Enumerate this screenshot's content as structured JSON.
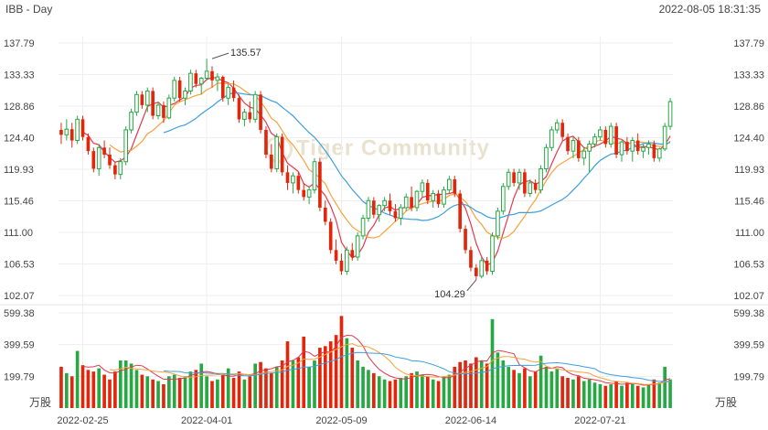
{
  "header": {
    "title": "IBB - Day",
    "timestamp": "2022-08-05 18:31:35"
  },
  "watermark": {
    "text": "Tiger Community"
  },
  "colors": {
    "up": "#27a844",
    "down": "#e2260c",
    "ma_short": "#e2394f",
    "ma_mid": "#f7a33c",
    "ma_long": "#3e9edc"
  },
  "chart_data": {
    "type": "candlestick",
    "price_axis": {
      "ticks": [
        "137.79",
        "133.33",
        "128.86",
        "124.40",
        "119.93",
        "115.46",
        "111.00",
        "106.53",
        "102.07"
      ],
      "min": 102.07,
      "max": 137.79
    },
    "volume_axis": {
      "ticks": [
        "599.38",
        "399.59",
        "199.79"
      ],
      "unit": "万股",
      "max": 599.38
    },
    "date_ticks": [
      "2022-02-25",
      "2022-04-01",
      "2022-05-09",
      "2022-06-14",
      "2022-07-21"
    ],
    "date_tick_index": [
      4,
      27,
      52,
      76,
      100
    ],
    "annotations": [
      {
        "text": "135.57",
        "index": 28,
        "value": 135.57,
        "kind": "high"
      },
      {
        "text": "104.29",
        "index": 77,
        "value": 104.29,
        "kind": "low"
      }
    ],
    "candles": [
      [
        125.5,
        126.5,
        123.5,
        124.8,
        260
      ],
      [
        124.8,
        127.0,
        124.0,
        125.6,
        220
      ],
      [
        125.6,
        126.5,
        123.0,
        124.0,
        200
      ],
      [
        124.0,
        127.5,
        123.5,
        127.0,
        360
      ],
      [
        127.0,
        127.5,
        124.0,
        124.5,
        270
      ],
      [
        124.5,
        125.0,
        122.0,
        122.5,
        240
      ],
      [
        122.5,
        123.0,
        119.5,
        120.0,
        230
      ],
      [
        120.0,
        123.5,
        119.0,
        123.0,
        250
      ],
      [
        123.0,
        124.0,
        121.5,
        122.0,
        210
      ],
      [
        122.0,
        123.0,
        120.0,
        120.5,
        180
      ],
      [
        120.5,
        121.0,
        118.5,
        119.2,
        230
      ],
      [
        119.2,
        121.5,
        118.5,
        121.0,
        300
      ],
      [
        121.0,
        126.0,
        120.5,
        125.5,
        300
      ],
      [
        125.5,
        128.5,
        125.0,
        128.0,
        280
      ],
      [
        128.0,
        131.0,
        127.5,
        130.5,
        240
      ],
      [
        130.5,
        131.0,
        128.5,
        129.0,
        210
      ],
      [
        129.0,
        131.5,
        128.0,
        131.0,
        200
      ],
      [
        131.0,
        131.5,
        127.0,
        127.5,
        180
      ],
      [
        127.5,
        129.5,
        127.0,
        129.0,
        170
      ],
      [
        129.0,
        129.5,
        126.5,
        127.2,
        150
      ],
      [
        127.2,
        130.5,
        127.0,
        130.0,
        200
      ],
      [
        130.0,
        133.0,
        129.5,
        132.5,
        210
      ],
      [
        132.5,
        133.0,
        129.5,
        130.0,
        190
      ],
      [
        130.0,
        131.5,
        129.0,
        131.0,
        200
      ],
      [
        131.0,
        134.0,
        130.5,
        133.5,
        230
      ],
      [
        133.5,
        134.0,
        131.5,
        132.0,
        240
      ],
      [
        132.0,
        133.0,
        130.5,
        132.8,
        280
      ],
      [
        132.8,
        135.57,
        132.5,
        133.8,
        200
      ],
      [
        133.8,
        134.5,
        131.5,
        132.5,
        170
      ],
      [
        132.5,
        133.5,
        131.0,
        133.0,
        180
      ],
      [
        133.0,
        133.2,
        129.5,
        130.0,
        210
      ],
      [
        130.0,
        132.0,
        129.0,
        131.5,
        250
      ],
      [
        131.5,
        132.5,
        129.5,
        130.0,
        190
      ],
      [
        130.0,
        130.5,
        126.5,
        127.0,
        230
      ],
      [
        127.0,
        128.5,
        126.0,
        128.0,
        180
      ],
      [
        128.0,
        129.5,
        126.5,
        127.0,
        200
      ],
      [
        127.0,
        131.0,
        126.5,
        130.5,
        280
      ],
      [
        130.5,
        131.0,
        125.0,
        125.5,
        290
      ],
      [
        125.5,
        126.0,
        121.5,
        122.0,
        250
      ],
      [
        122.0,
        123.5,
        119.5,
        120.0,
        220
      ],
      [
        120.0,
        125.0,
        119.5,
        124.5,
        260
      ],
      [
        124.5,
        125.0,
        119.0,
        119.5,
        300
      ],
      [
        119.5,
        120.5,
        117.0,
        118.0,
        420
      ],
      [
        118.0,
        119.5,
        116.5,
        119.0,
        300
      ],
      [
        119.0,
        119.5,
        116.5,
        117.0,
        320
      ],
      [
        117.0,
        118.0,
        115.5,
        116.0,
        450
      ],
      [
        116.0,
        117.5,
        115.0,
        117.0,
        260
      ],
      [
        117.0,
        121.5,
        116.5,
        121.0,
        300
      ],
      [
        121.0,
        121.5,
        114.0,
        114.5,
        380
      ],
      [
        114.5,
        115.5,
        112.0,
        112.5,
        390
      ],
      [
        112.5,
        113.0,
        108.0,
        108.5,
        420
      ],
      [
        108.5,
        110.0,
        106.5,
        107.0,
        460
      ],
      [
        107.0,
        108.0,
        105.0,
        105.5,
        580
      ],
      [
        105.5,
        109.0,
        105.0,
        108.5,
        440
      ],
      [
        108.5,
        109.5,
        107.0,
        107.5,
        380
      ],
      [
        107.5,
        111.0,
        107.0,
        110.5,
        300
      ],
      [
        110.5,
        113.5,
        110.0,
        113.0,
        260
      ],
      [
        113.0,
        116.0,
        112.5,
        115.5,
        240
      ],
      [
        115.5,
        116.0,
        113.0,
        113.5,
        220
      ],
      [
        113.5,
        115.0,
        112.5,
        114.8,
        200
      ],
      [
        114.8,
        116.0,
        114.0,
        115.5,
        180
      ],
      [
        115.5,
        116.5,
        113.5,
        114.0,
        170
      ],
      [
        114.0,
        115.0,
        112.5,
        113.0,
        180
      ],
      [
        113.0,
        115.0,
        112.0,
        114.5,
        190
      ],
      [
        114.5,
        116.5,
        114.0,
        116.0,
        200
      ],
      [
        116.0,
        117.5,
        114.0,
        114.5,
        220
      ],
      [
        114.5,
        117.0,
        114.0,
        116.8,
        230
      ],
      [
        116.8,
        118.5,
        116.0,
        118.0,
        210
      ],
      [
        118.0,
        118.5,
        115.0,
        115.5,
        200
      ],
      [
        115.5,
        117.0,
        114.5,
        116.5,
        180
      ],
      [
        116.5,
        117.0,
        114.5,
        115.0,
        170
      ],
      [
        115.0,
        117.5,
        114.5,
        117.0,
        200
      ],
      [
        117.0,
        119.0,
        116.5,
        118.5,
        210
      ],
      [
        118.5,
        119.0,
        116.0,
        116.5,
        260
      ],
      [
        116.5,
        117.0,
        111.0,
        111.5,
        290
      ],
      [
        111.5,
        112.0,
        108.0,
        108.5,
        300
      ],
      [
        108.5,
        109.0,
        105.5,
        106.0,
        280
      ],
      [
        106.0,
        106.5,
        104.29,
        104.8,
        320
      ],
      [
        104.8,
        107.5,
        104.5,
        107.0,
        300
      ],
      [
        107.0,
        107.5,
        105.0,
        105.5,
        280
      ],
      [
        105.5,
        111.0,
        105.0,
        110.5,
        560
      ],
      [
        110.5,
        114.5,
        110.0,
        114.0,
        350
      ],
      [
        114.0,
        118.0,
        113.5,
        117.5,
        300
      ],
      [
        117.5,
        120.0,
        117.0,
        119.5,
        260
      ],
      [
        119.5,
        120.0,
        117.5,
        118.0,
        240
      ],
      [
        118.0,
        120.0,
        117.0,
        119.5,
        220
      ],
      [
        119.5,
        120.0,
        116.0,
        116.5,
        250
      ],
      [
        116.5,
        118.5,
        116.0,
        118.0,
        200
      ],
      [
        118.0,
        118.5,
        116.5,
        117.0,
        230
      ],
      [
        117.0,
        120.5,
        116.5,
        120.0,
        330
      ],
      [
        120.0,
        123.5,
        119.5,
        123.0,
        260
      ],
      [
        123.0,
        126.0,
        122.5,
        125.5,
        230
      ],
      [
        125.5,
        127.0,
        125.0,
        126.5,
        250
      ],
      [
        126.5,
        127.0,
        124.0,
        124.5,
        200
      ],
      [
        124.5,
        125.0,
        122.0,
        122.5,
        190
      ],
      [
        122.5,
        124.5,
        121.5,
        124.0,
        180
      ],
      [
        124.0,
        124.5,
        121.0,
        121.5,
        200
      ],
      [
        121.5,
        123.0,
        120.5,
        122.5,
        170
      ],
      [
        122.5,
        124.0,
        119.5,
        123.5,
        180
      ],
      [
        123.5,
        125.0,
        123.0,
        124.5,
        160
      ],
      [
        124.5,
        126.0,
        124.0,
        125.5,
        150
      ],
      [
        125.5,
        126.0,
        123.0,
        123.5,
        140
      ],
      [
        123.5,
        126.5,
        123.0,
        126.0,
        150
      ],
      [
        126.0,
        126.5,
        121.5,
        122.0,
        170
      ],
      [
        122.0,
        124.0,
        121.0,
        123.8,
        140
      ],
      [
        123.8,
        124.5,
        122.0,
        122.5,
        160
      ],
      [
        122.5,
        124.5,
        121.0,
        124.0,
        150
      ],
      [
        124.0,
        125.0,
        122.0,
        122.5,
        140
      ],
      [
        122.5,
        123.5,
        121.5,
        123.0,
        130
      ],
      [
        123.0,
        124.0,
        122.0,
        123.5,
        150
      ],
      [
        123.5,
        124.0,
        121.0,
        121.5,
        180
      ],
      [
        121.5,
        123.0,
        121.0,
        122.8,
        160
      ],
      [
        122.8,
        126.5,
        122.5,
        126.0,
        260
      ],
      [
        126.0,
        130.0,
        125.5,
        129.5,
        180
      ]
    ]
  }
}
